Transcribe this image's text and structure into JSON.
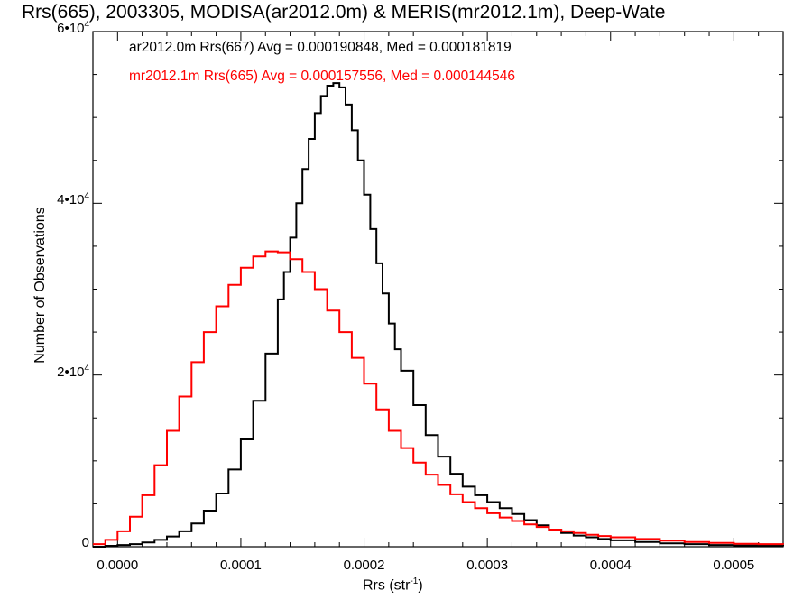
{
  "chart_data": {
    "type": "line",
    "step": true,
    "title": "Rrs(665), 2003305, MODISA(ar2012.0m) & MERIS(mr2012.1m), Deep-Wate",
    "xlabel": "Rrs (str",
    "xlabel_sup": "-1",
    "xlabel_end": ")",
    "ylabel": "Number of Observations",
    "xlim": [
      -2e-05,
      0.00054
    ],
    "ylim": [
      0,
      60000
    ],
    "x_ticks": [
      {
        "value": 0.0,
        "label": "0.0000"
      },
      {
        "value": 0.0001,
        "label": "0.0001"
      },
      {
        "value": 0.0002,
        "label": "0.0002"
      },
      {
        "value": 0.0003,
        "label": "0.0003"
      },
      {
        "value": 0.0004,
        "label": "0.0004"
      },
      {
        "value": 0.0005,
        "label": "0.0005"
      }
    ],
    "y_ticks": [
      {
        "value": 0,
        "label": "0",
        "sup": ""
      },
      {
        "value": 20000,
        "label": "2•10",
        "sup": "4"
      },
      {
        "value": 40000,
        "label": "4•10",
        "sup": "4"
      },
      {
        "value": 60000,
        "label": "6•10",
        "sup": "4"
      }
    ],
    "grid": false,
    "legend_placement": "top-left",
    "series": [
      {
        "name": "ar2012.0m Rrs(667) Avg = 0.000190848, Med = 0.000181819",
        "color": "#000000",
        "x": [
          -2e-05,
          -1e-05,
          0.0,
          1e-05,
          2e-05,
          3e-05,
          4e-05,
          5e-05,
          6e-05,
          7e-05,
          8e-05,
          9e-05,
          0.0001,
          0.00011,
          0.00012,
          0.00013,
          0.000135,
          0.00014,
          0.000145,
          0.00015,
          0.000155,
          0.00016,
          0.000165,
          0.00017,
          0.000175,
          0.00018,
          0.000185,
          0.00019,
          0.000195,
          0.0002,
          0.000205,
          0.00021,
          0.000215,
          0.00022,
          0.000225,
          0.00023,
          0.00024,
          0.00025,
          0.00026,
          0.00027,
          0.00028,
          0.00029,
          0.0003,
          0.00031,
          0.00032,
          0.00033,
          0.00034,
          0.00035,
          0.00036,
          0.00037,
          0.00038,
          0.00039,
          0.0004,
          0.00042,
          0.00044,
          0.00046,
          0.00048,
          0.0005,
          0.00052,
          0.00054
        ],
        "values": [
          0,
          100,
          200,
          300,
          500,
          800,
          1200,
          1800,
          2700,
          4200,
          6200,
          9000,
          12500,
          17000,
          22500,
          28800,
          32000,
          36000,
          40000,
          44000,
          47500,
          50500,
          52500,
          53700,
          54000,
          53500,
          51500,
          48500,
          45000,
          41000,
          37000,
          33000,
          29500,
          26000,
          23000,
          20500,
          16500,
          13000,
          10500,
          8500,
          7000,
          6000,
          5200,
          4500,
          3800,
          3100,
          2500,
          2000,
          1600,
          1300,
          1100,
          900,
          750,
          550,
          400,
          300,
          200,
          150,
          100,
          50
        ]
      },
      {
        "name": "mr2012.1m Rrs(665) Avg = 0.000157556, Med = 0.000144546",
        "color": "#ff0000",
        "x": [
          -2e-05,
          -1e-05,
          0.0,
          1e-05,
          2e-05,
          3e-05,
          4e-05,
          5e-05,
          6e-05,
          7e-05,
          8e-05,
          9e-05,
          0.0001,
          0.00011,
          0.00012,
          0.00013,
          0.00014,
          0.00015,
          0.00016,
          0.00017,
          0.00018,
          0.00019,
          0.0002,
          0.00021,
          0.00022,
          0.00023,
          0.00024,
          0.00025,
          0.00026,
          0.00027,
          0.00028,
          0.00029,
          0.0003,
          0.00031,
          0.00032,
          0.00033,
          0.00034,
          0.00035,
          0.00036,
          0.00037,
          0.00038,
          0.00039,
          0.0004,
          0.00042,
          0.00044,
          0.00046,
          0.00048,
          0.0005,
          0.00052,
          0.00054
        ],
        "values": [
          300,
          800,
          1800,
          3500,
          6000,
          9500,
          13500,
          17500,
          21500,
          25000,
          28000,
          30500,
          32500,
          33800,
          34400,
          34300,
          33500,
          32000,
          30000,
          27500,
          25000,
          22000,
          19000,
          16000,
          13500,
          11500,
          9800,
          8400,
          7200,
          6100,
          5200,
          4500,
          3900,
          3400,
          3000,
          2600,
          2300,
          2000,
          1800,
          1600,
          1400,
          1250,
          1100,
          900,
          700,
          550,
          450,
          350,
          300,
          250
        ]
      }
    ]
  }
}
